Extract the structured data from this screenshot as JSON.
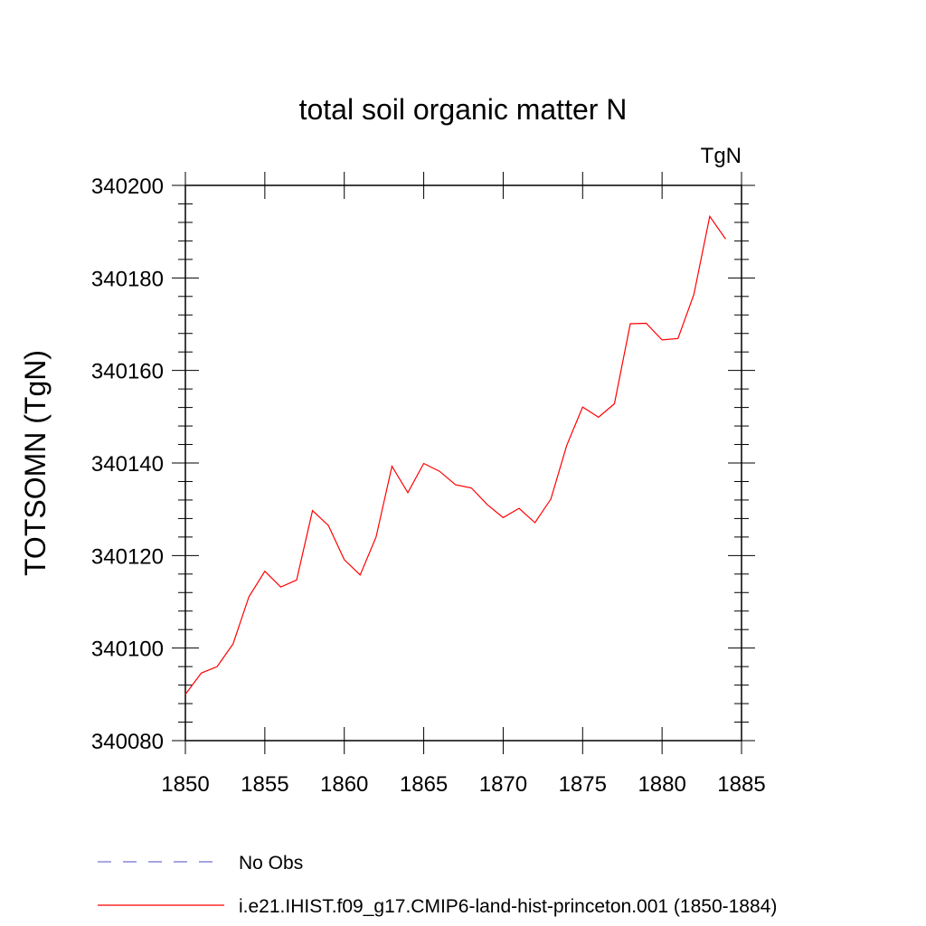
{
  "chart_data": {
    "type": "line",
    "title": "total soil organic matter N",
    "units_label": "TgN",
    "ylabel": "TOTSOMN  (TgN)",
    "xlabel": "",
    "xlim": [
      1850,
      1885
    ],
    "ylim": [
      340080,
      340200
    ],
    "x_ticks": [
      1850,
      1855,
      1860,
      1865,
      1870,
      1875,
      1880,
      1885
    ],
    "x_tick_labels": [
      "1850",
      "1855",
      "1860",
      "1865",
      "1870",
      "1875",
      "1880",
      "1885"
    ],
    "y_ticks": [
      340080,
      340100,
      340120,
      340140,
      340160,
      340180,
      340200
    ],
    "y_tick_labels": [
      "340080",
      "340100",
      "340120",
      "340140",
      "340160",
      "340180",
      "340200"
    ],
    "grid": false,
    "legend_position": "bottom",
    "series": [
      {
        "name": "No Obs",
        "color": "#6f6fd0",
        "dash": "dashed",
        "x": [],
        "values": []
      },
      {
        "name": "i.e21.IHIST.f09_g17.CMIP6-land-hist-princeton.001 (1850-1884)",
        "color": "#ff0000",
        "dash": "solid",
        "x": [
          1850,
          1851,
          1852,
          1853,
          1854,
          1855,
          1856,
          1857,
          1858,
          1859,
          1860,
          1861,
          1862,
          1863,
          1864,
          1865,
          1866,
          1867,
          1868,
          1869,
          1870,
          1871,
          1872,
          1873,
          1874,
          1875,
          1876,
          1877,
          1878,
          1879,
          1880,
          1881,
          1882,
          1883,
          1884
        ],
        "values": [
          340090.0,
          340094.6,
          340096.0,
          340100.9,
          340111.1,
          340116.6,
          340113.2,
          340114.7,
          340129.7,
          340126.5,
          340119.1,
          340115.8,
          340124.0,
          340139.3,
          340133.6,
          340139.9,
          340138.2,
          340135.3,
          340134.6,
          340131.0,
          340128.2,
          340130.2,
          340127.1,
          340132.2,
          340143.8,
          340152.1,
          340149.9,
          340152.8,
          340170.1,
          340170.2,
          340166.6,
          340166.9,
          340176.4,
          340193.3,
          340188.4
        ]
      }
    ]
  }
}
